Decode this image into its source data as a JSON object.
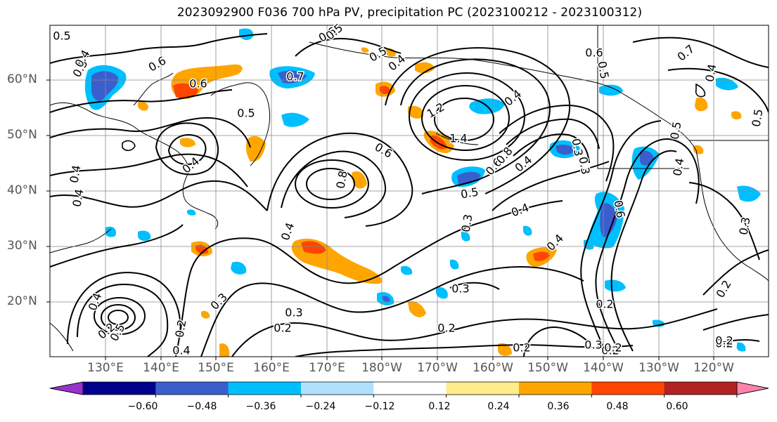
{
  "title": "2023092900 F036 700 hPa PV, precipitation PC (2023100212 - 2023100312)",
  "lat_labels": [
    "60°N",
    "50°N",
    "40°N",
    "30°N",
    "20°N"
  ],
  "lon_labels": [
    "130°E",
    "140°E",
    "150°E",
    "160°E",
    "170°E",
    "180°W",
    "170°W",
    "160°W",
    "150°W",
    "140°W",
    "130°W",
    "120°W"
  ],
  "colorbar": {
    "ticks": [
      "−0.60",
      "−0.48",
      "−0.36",
      "−0.24",
      "−0.12",
      "0.12",
      "0.24",
      "0.36",
      "0.48",
      "0.60"
    ],
    "colors": [
      "#9932cc",
      "#00008b",
      "#3a5fcd",
      "#00bfff",
      "#b0e2ff",
      "#ffffff",
      "#ffec8b",
      "#ffa500",
      "#ff4500",
      "#b22222",
      "#ff82ab"
    ]
  },
  "contour_labels": [
    "0.5",
    "0.5",
    "0.4",
    "0.4",
    "0.6",
    "0.6",
    "0.6",
    "0.5",
    "0.4",
    "0.7",
    "0.5",
    "0.4",
    "0.4",
    "0.5",
    "0.4",
    "0.4",
    "0.6",
    "1.2",
    "1.4",
    "0.6",
    "0.8",
    "0.6",
    "0.5",
    "0.8",
    "0.3",
    "0.5",
    "0.3",
    "0.4",
    "0.4",
    "0.4",
    "0.6",
    "0.5",
    "0.4",
    "0.4",
    "0.7",
    "0.3",
    "0.5",
    "0.4",
    "0.2",
    "0.3",
    "0.3",
    "0.2",
    "0.2",
    "0.2",
    "0.3",
    "0.2",
    "0.3",
    "0.2",
    "0.2",
    "0.2",
    "0.4",
    "0.2",
    "0.3",
    "0.2",
    "0.5",
    "0.2"
  ]
}
